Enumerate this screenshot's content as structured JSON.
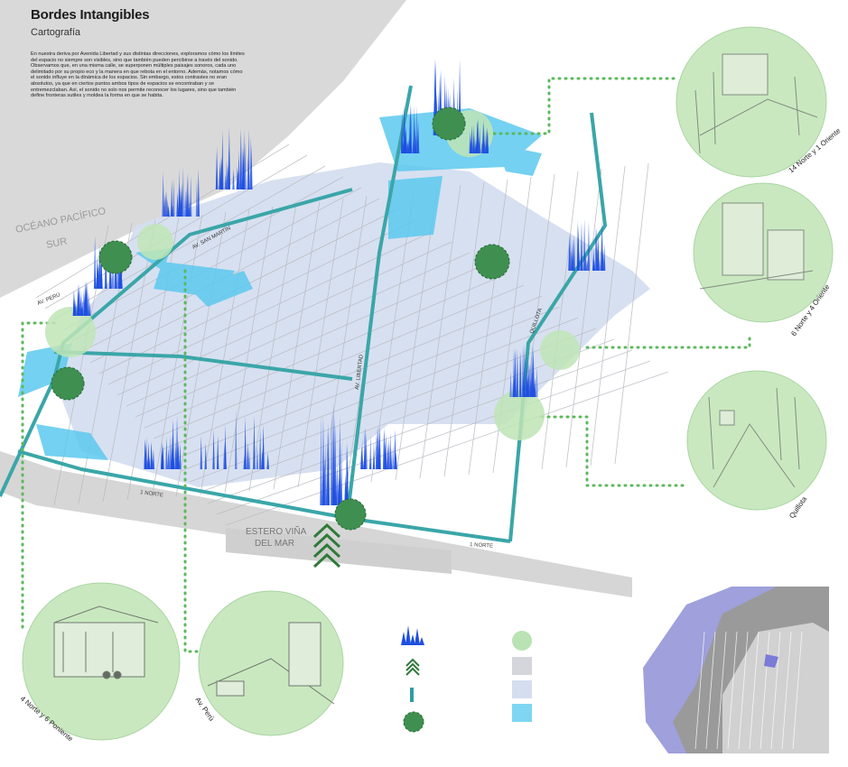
{
  "header": {
    "title": "Bordes Intangibles",
    "subtitle": "Cartografía",
    "description": "En nuestra deriva por Avenida Libertad y sus distintas direcciones, exploramos cómo los límites del espacio no siempre son visibles, sino que también pueden percibirse a través del sonido. Observamos que, en una misma calle, se superponen múltiples paisajes sonoros, cada uno delimitado por su propio eco y la manera en que rebota en el entorno. Además, notamos cómo el sonido influye en la dinámica de los espacios. Sin embargo, estos contrastes no eran absolutos, ya que en ciertos puntos ambos tipos de espacios se encontraban y se entremezclaban. Así, el sonido no solo nos permite reconocer los lugares, sino que también define fronteras sutiles y moldea la forma en que se habita."
  },
  "map_labels": {
    "ocean": "OCÉANO PACÍFICO",
    "ocean_sub": "SUR",
    "av_peru": "AV. PERÚ",
    "av_san_martin": "AV. SAN MARTÍN",
    "av_libertad": "AV. LIBERTAD",
    "quillota_street": "QUILLOTA",
    "norte_1": "1 NORTE",
    "norte_1b": "1 NORTE",
    "estero_line1": "ESTERO VIÑA",
    "estero_line2": "DEL MAR"
  },
  "sketches": [
    {
      "label": "14 Norte y 1 Oriente"
    },
    {
      "label": "6 Norte y 4 Oriente"
    },
    {
      "label": "Quillota"
    },
    {
      "label": "4 Norte y 6 Poniente"
    },
    {
      "label": "Av. Perú"
    }
  ],
  "legend": {
    "items": [
      {
        "symbol": "sound-spikes",
        "color": "#1f4fe0"
      },
      {
        "symbol": "chevron-arrows",
        "color": "#2f8a3e"
      },
      {
        "symbol": "route-line",
        "color": "#2e9ea3"
      },
      {
        "symbol": "tree-blob",
        "color": "#3d8c4f"
      },
      {
        "symbol": "green-circle",
        "color": "#b9e3b2"
      },
      {
        "symbol": "grey-rect",
        "color": "#d4d6dc"
      },
      {
        "symbol": "pale-blue-rect",
        "color": "#d5deef"
      },
      {
        "symbol": "cyan-rect",
        "color": "#7fd6f2"
      }
    ]
  },
  "colors": {
    "route": "#3aa6a8",
    "spikes": "#1f4fe0",
    "pale_blue": "#d5deef",
    "cyan": "#5cc9ef",
    "green_circle": "#bfe5b6",
    "tree": "#3e8f50",
    "dotted": "#5cb85c",
    "land_grey": "#d6d6d6"
  }
}
